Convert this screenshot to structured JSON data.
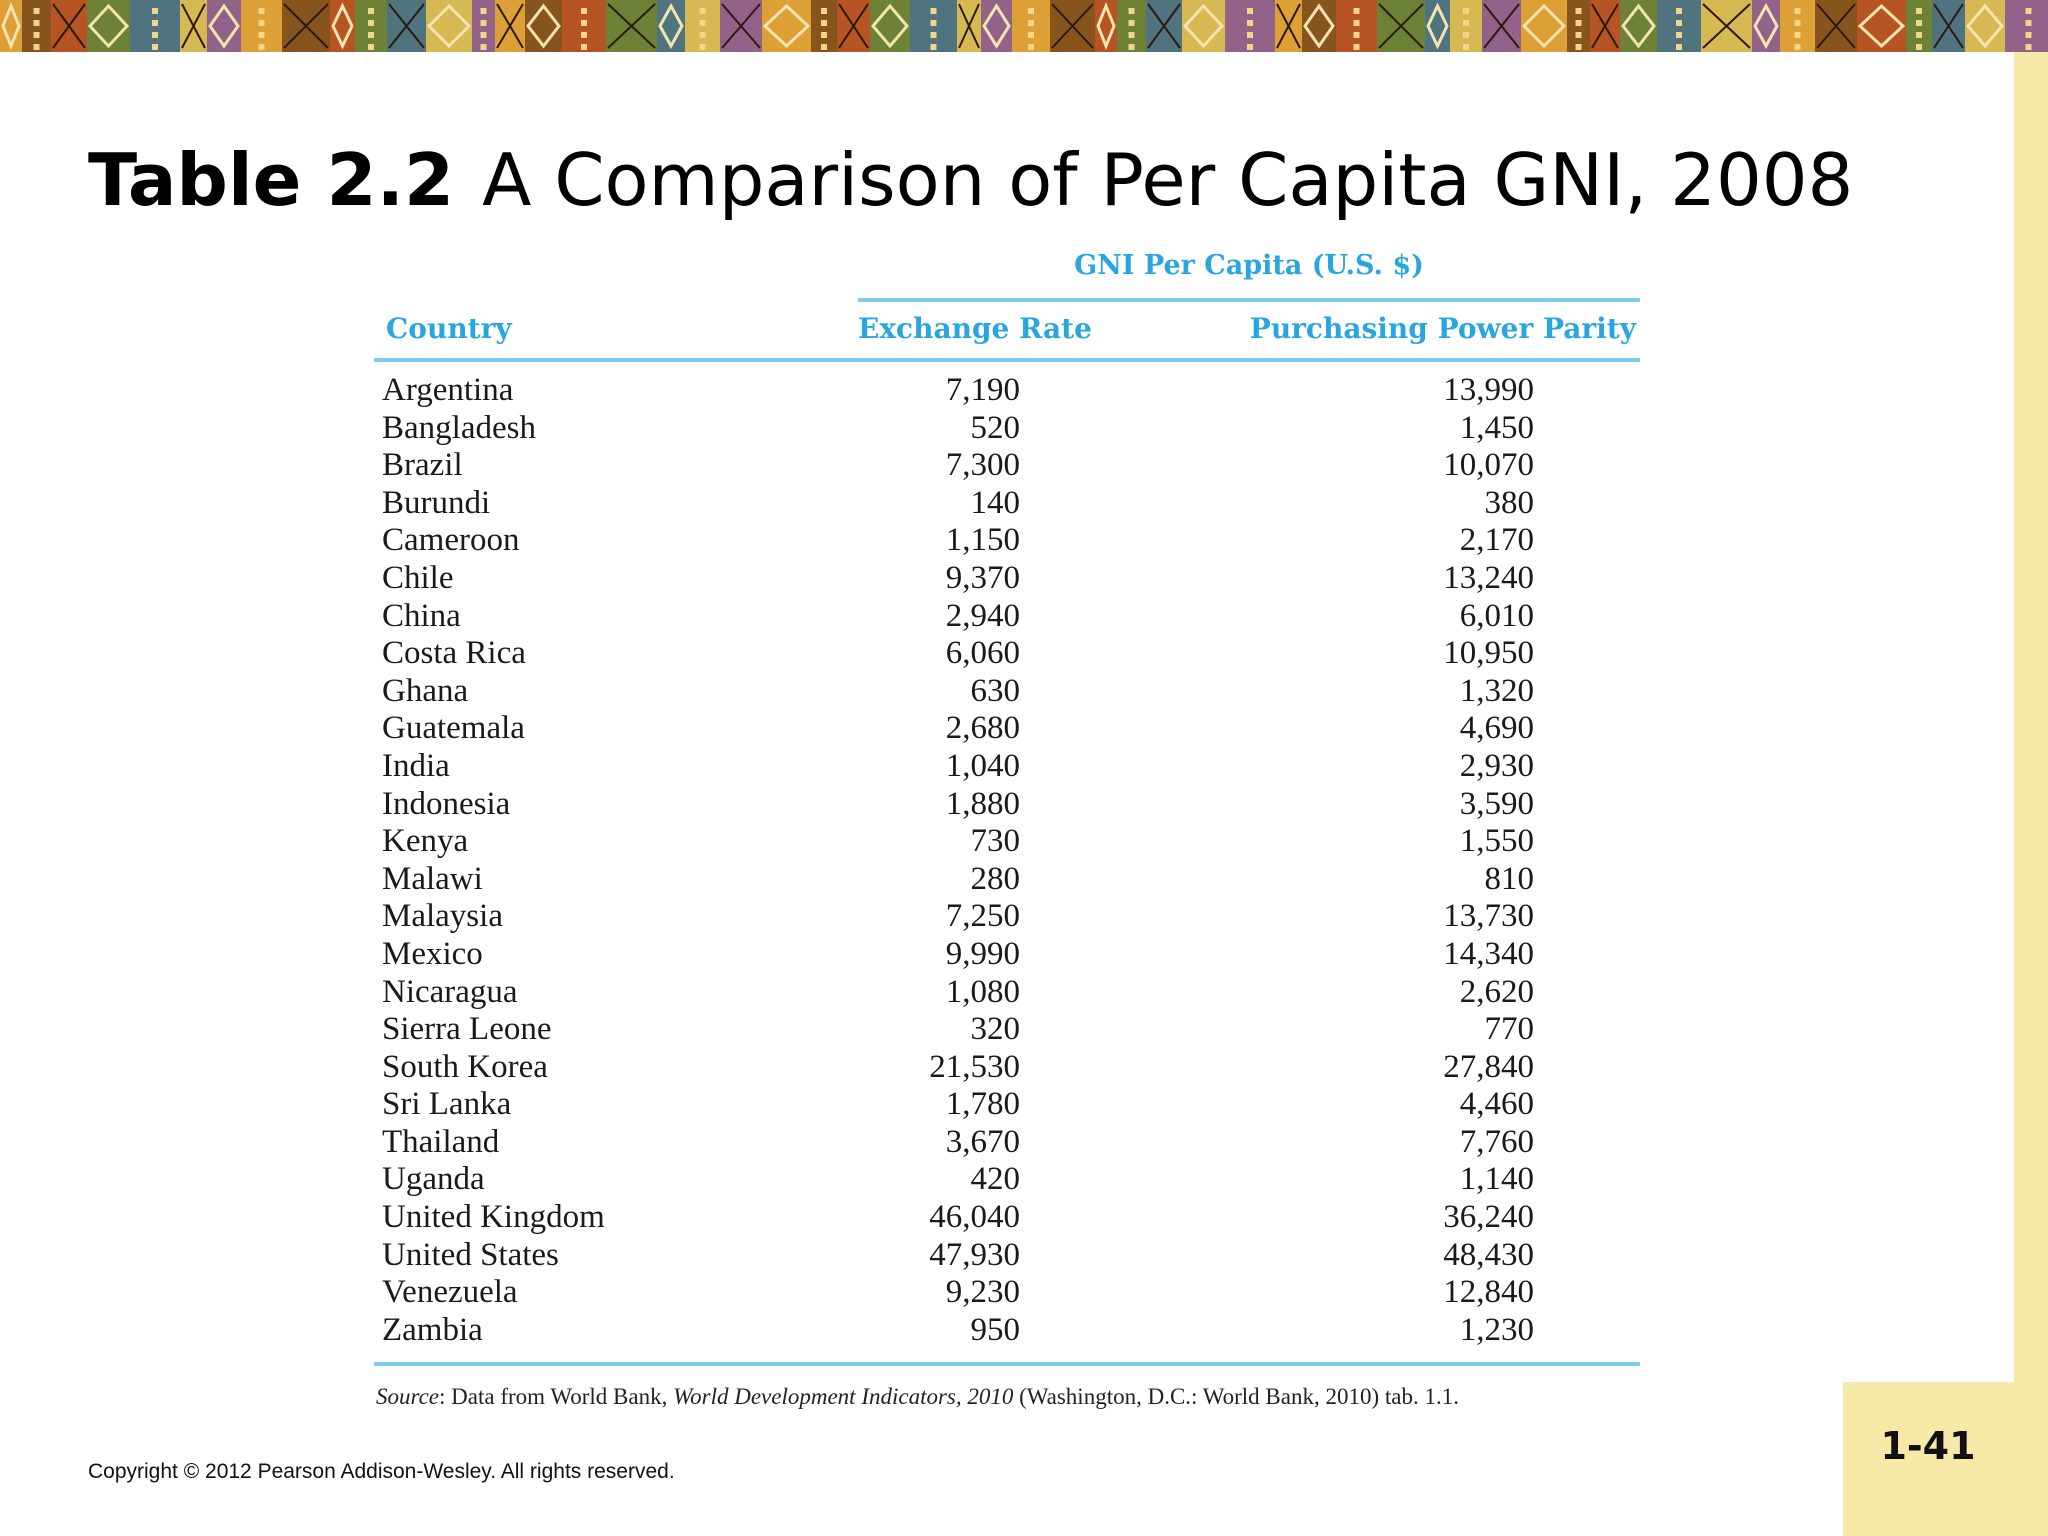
{
  "title": {
    "number": "Table 2.2",
    "text": "A Comparison of Per Capita GNI, 2008"
  },
  "table": {
    "group_header": "GNI Per Capita (U.S. $)",
    "columns": [
      "Country",
      "Exchange Rate",
      "Purchasing Power Parity"
    ],
    "rows": [
      {
        "country": "Argentina",
        "exchange_rate": "7,190",
        "ppp": "13,990"
      },
      {
        "country": "Bangladesh",
        "exchange_rate": "520",
        "ppp": "1,450"
      },
      {
        "country": "Brazil",
        "exchange_rate": "7,300",
        "ppp": "10,070"
      },
      {
        "country": "Burundi",
        "exchange_rate": "140",
        "ppp": "380"
      },
      {
        "country": "Cameroon",
        "exchange_rate": "1,150",
        "ppp": "2,170"
      },
      {
        "country": "Chile",
        "exchange_rate": "9,370",
        "ppp": "13,240"
      },
      {
        "country": "China",
        "exchange_rate": "2,940",
        "ppp": "6,010"
      },
      {
        "country": "Costa Rica",
        "exchange_rate": "6,060",
        "ppp": "10,950"
      },
      {
        "country": "Ghana",
        "exchange_rate": "630",
        "ppp": "1,320"
      },
      {
        "country": "Guatemala",
        "exchange_rate": "2,680",
        "ppp": "4,690"
      },
      {
        "country": "India",
        "exchange_rate": "1,040",
        "ppp": "2,930"
      },
      {
        "country": "Indonesia",
        "exchange_rate": "1,880",
        "ppp": "3,590"
      },
      {
        "country": "Kenya",
        "exchange_rate": "730",
        "ppp": "1,550"
      },
      {
        "country": "Malawi",
        "exchange_rate": "280",
        "ppp": "810"
      },
      {
        "country": "Malaysia",
        "exchange_rate": "7,250",
        "ppp": "13,730"
      },
      {
        "country": "Mexico",
        "exchange_rate": "9,990",
        "ppp": "14,340"
      },
      {
        "country": "Nicaragua",
        "exchange_rate": "1,080",
        "ppp": "2,620"
      },
      {
        "country": "Sierra Leone",
        "exchange_rate": "320",
        "ppp": "770"
      },
      {
        "country": "South Korea",
        "exchange_rate": "21,530",
        "ppp": "27,840"
      },
      {
        "country": "Sri Lanka",
        "exchange_rate": "1,780",
        "ppp": "4,460"
      },
      {
        "country": "Thailand",
        "exchange_rate": "3,670",
        "ppp": "7,760"
      },
      {
        "country": "Uganda",
        "exchange_rate": "420",
        "ppp": "1,140"
      },
      {
        "country": "United Kingdom",
        "exchange_rate": "46,040",
        "ppp": "36,240"
      },
      {
        "country": "United States",
        "exchange_rate": "47,930",
        "ppp": "48,430"
      },
      {
        "country": "Venezuela",
        "exchange_rate": "9,230",
        "ppp": "12,840"
      },
      {
        "country": "Zambia",
        "exchange_rate": "950",
        "ppp": "1,230"
      }
    ],
    "source": {
      "label": "Source",
      "text_before": ": Data from World Bank, ",
      "italic_title": "World Development Indicators, 2010",
      "text_after": " (Washington, D.C.: World Bank, 2010) tab. 1.1."
    }
  },
  "footer": {
    "copyright": "Copyright © 2012 Pearson Addison-Wesley. All rights reserved.",
    "page_number": "1-41"
  },
  "colors": {
    "header_blue": "#2aa6df",
    "rule_blue": "#7fcdee",
    "side_yellow": "#f7e9a8"
  }
}
